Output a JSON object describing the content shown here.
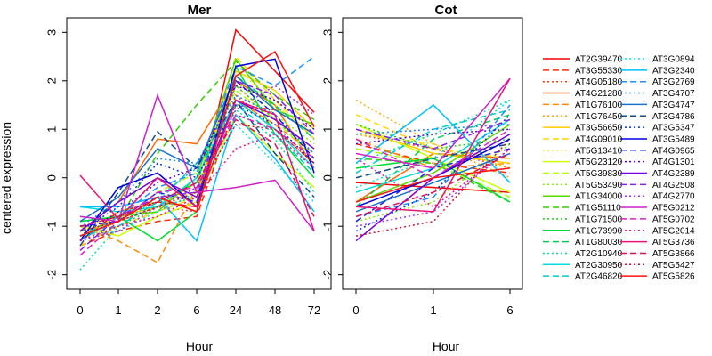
{
  "ylabel": "centered expression",
  "chart_data": [
    {
      "type": "line",
      "title": "Mer",
      "xlabel": "Hour",
      "ylabel": "centered expression",
      "categories": [
        "0",
        "1",
        "2",
        "6",
        "24",
        "48",
        "72"
      ],
      "ylim": [
        -2.3,
        3.3
      ],
      "yticks": [
        -2,
        -1,
        0,
        1,
        2,
        3
      ],
      "grid": false,
      "series": [
        {
          "name": "AT2G39470",
          "color": "#ff0000",
          "dash": "solid",
          "values": [
            -1.3,
            -0.7,
            -0.5,
            -0.6,
            3.05,
            2.2,
            1.35
          ]
        },
        {
          "name": "AT3G55330",
          "color": "#ff2a00",
          "dash": "dashed",
          "values": [
            -1.4,
            -1.1,
            -0.9,
            -0.8,
            1.5,
            1.4,
            0.9
          ]
        },
        {
          "name": "AT4G05180",
          "color": "#ff3f00",
          "dash": "dotted",
          "values": [
            -1.2,
            -0.9,
            -0.6,
            -0.7,
            1.7,
            1.0,
            0.3
          ]
        },
        {
          "name": "AT4G21280",
          "color": "#ff6a00",
          "dash": "solid",
          "values": [
            -1.1,
            -0.5,
            0.8,
            0.7,
            2.0,
            1.5,
            0.2
          ]
        },
        {
          "name": "AT1G76100",
          "color": "#ff8c00",
          "dash": "dashed",
          "values": [
            -1.0,
            -1.3,
            -1.75,
            -0.2,
            1.6,
            1.1,
            0.5
          ]
        },
        {
          "name": "AT1G76450",
          "color": "#ffa500",
          "dash": "dotted",
          "values": [
            -1.3,
            -0.9,
            -0.4,
            -0.3,
            1.9,
            1.2,
            0.6
          ]
        },
        {
          "name": "AT3G56650",
          "color": "#ffcc00",
          "dash": "solid",
          "values": [
            -1.2,
            -0.8,
            -0.6,
            -0.1,
            2.2,
            1.8,
            1.0
          ]
        },
        {
          "name": "AT4G09010",
          "color": "#ffd700",
          "dash": "dashed",
          "values": [
            -1.4,
            -1.0,
            -0.7,
            -0.4,
            2.5,
            1.6,
            0.8
          ]
        },
        {
          "name": "AT5G13410",
          "color": "#e6e600",
          "dash": "dotted",
          "values": [
            -1.1,
            -0.7,
            -0.5,
            -0.3,
            2.3,
            1.5,
            0.9
          ]
        },
        {
          "name": "AT5G23120",
          "color": "#ccff00",
          "dash": "solid",
          "values": [
            -1.0,
            -1.2,
            -0.8,
            -0.5,
            1.3,
            0.5,
            -0.2
          ]
        },
        {
          "name": "AT5G39830",
          "color": "#aaff00",
          "dash": "dashed",
          "values": [
            -1.2,
            -0.9,
            -0.3,
            0.1,
            1.8,
            1.2,
            0.4
          ]
        },
        {
          "name": "AT5G53490",
          "color": "#88ee00",
          "dash": "dotted",
          "values": [
            -1.3,
            -1.1,
            -0.6,
            -0.2,
            2.0,
            1.3,
            0.7
          ]
        },
        {
          "name": "AT1G34000",
          "color": "#55dd00",
          "dash": "solid",
          "values": [
            -0.9,
            -0.8,
            -0.7,
            0.0,
            2.45,
            1.4,
            1.1
          ]
        },
        {
          "name": "AT1G51110",
          "color": "#33cc00",
          "dash": "dashed",
          "values": [
            -1.1,
            -0.9,
            0.5,
            1.5,
            2.4,
            1.7,
            1.2
          ]
        },
        {
          "name": "AT1G71500",
          "color": "#22cc22",
          "dash": "dotted",
          "values": [
            -1.3,
            -1.0,
            -0.6,
            -0.4,
            1.9,
            1.2,
            0.5
          ]
        },
        {
          "name": "AT1G73990",
          "color": "#00dd33",
          "dash": "solid",
          "values": [
            -0.9,
            -0.8,
            -1.3,
            -0.7,
            2.3,
            0.9,
            0.0
          ]
        },
        {
          "name": "AT1G80030",
          "color": "#00cc55",
          "dash": "dashed",
          "values": [
            -1.2,
            -1.0,
            -0.5,
            -0.1,
            2.1,
            1.5,
            0.8
          ]
        },
        {
          "name": "AT2G10940",
          "color": "#00ddaa",
          "dash": "dotted",
          "values": [
            -1.9,
            -1.0,
            -0.4,
            0.2,
            1.4,
            0.8,
            -0.3
          ]
        },
        {
          "name": "AT2G30950",
          "color": "#00dddd",
          "dash": "solid",
          "values": [
            -0.6,
            -0.7,
            -0.6,
            0.0,
            1.6,
            1.0,
            0.2
          ]
        },
        {
          "name": "AT2G46820",
          "color": "#00cccc",
          "dash": "dashed",
          "values": [
            -1.1,
            -1.0,
            -0.5,
            0.3,
            1.5,
            0.9,
            0.1
          ]
        },
        {
          "name": "AT3G0894",
          "color": "#00e5ee",
          "dash": "dotted",
          "values": [
            -1.2,
            -1.1,
            -0.7,
            -0.3,
            1.1,
            0.3,
            -0.5
          ]
        },
        {
          "name": "AT3G2340",
          "color": "#00bfff",
          "dash": "solid",
          "values": [
            -0.6,
            -0.6,
            -0.4,
            -1.3,
            1.3,
            0.4,
            -0.7
          ]
        },
        {
          "name": "AT3G2769",
          "color": "#1e90ff",
          "dash": "dashed",
          "values": [
            -1.3,
            -0.8,
            -0.2,
            0.1,
            2.3,
            1.9,
            2.5
          ]
        },
        {
          "name": "AT3G4707",
          "color": "#1c86ee",
          "dash": "dotted",
          "values": [
            -1.0,
            -0.5,
            0.4,
            0.3,
            1.7,
            1.3,
            0.5
          ]
        },
        {
          "name": "AT3G4747",
          "color": "#1874cd",
          "dash": "solid",
          "values": [
            -0.9,
            -0.4,
            0.6,
            0.2,
            2.1,
            1.4,
            0.9
          ]
        },
        {
          "name": "AT3G4786",
          "color": "#104e8b",
          "dash": "dashed",
          "values": [
            -1.4,
            -0.3,
            0.95,
            0.2,
            1.6,
            0.5,
            -0.4
          ]
        },
        {
          "name": "AT3G5347",
          "color": "#0033cc",
          "dash": "dotted",
          "values": [
            -1.1,
            -0.6,
            0.3,
            0.0,
            1.5,
            1.1,
            0.3
          ]
        },
        {
          "name": "AT3G5489",
          "color": "#0000dd",
          "dash": "solid",
          "values": [
            -1.3,
            -0.2,
            0.1,
            -0.6,
            2.3,
            2.45,
            0.1
          ]
        },
        {
          "name": "AT4G0965",
          "color": "#2222ee",
          "dash": "dashed",
          "values": [
            -1.0,
            -0.9,
            -0.3,
            -0.5,
            2.0,
            1.3,
            0.4
          ]
        },
        {
          "name": "AT4G1301",
          "color": "#5500cc",
          "dash": "dotted",
          "values": [
            -1.2,
            -0.7,
            -0.1,
            0.2,
            1.9,
            1.6,
            1.0
          ]
        },
        {
          "name": "AT4G2389",
          "color": "#7700dd",
          "dash": "solid",
          "values": [
            -1.1,
            -0.5,
            0.0,
            -0.4,
            1.6,
            1.2,
            0.6
          ]
        },
        {
          "name": "AT4G2508",
          "color": "#8822ee",
          "dash": "dashed",
          "values": [
            -1.5,
            -0.8,
            -0.4,
            -0.3,
            2.0,
            1.7,
            0.9
          ]
        },
        {
          "name": "AT4G2770",
          "color": "#9933ff",
          "dash": "dotted",
          "values": [
            -1.3,
            -1.1,
            -0.6,
            -0.2,
            1.4,
            1.9,
            1.3
          ]
        },
        {
          "name": "AT5G0212",
          "color": "#cc22cc",
          "dash": "solid",
          "values": [
            -0.8,
            -0.9,
            1.7,
            -0.3,
            -0.2,
            -0.05,
            -1.1
          ]
        },
        {
          "name": "AT5G0702",
          "color": "#dd22bb",
          "dash": "dashed",
          "values": [
            -1.6,
            -0.9,
            -0.3,
            -0.2,
            1.3,
            1.0,
            0.4
          ]
        },
        {
          "name": "AT5G2014",
          "color": "#ee1199",
          "dash": "dotted",
          "values": [
            -1.3,
            -1.0,
            -0.8,
            -0.4,
            0.6,
            0.9,
            0.2
          ]
        },
        {
          "name": "AT5G3736",
          "color": "#ee1177",
          "dash": "solid",
          "values": [
            0.05,
            -0.85,
            0.0,
            -0.6,
            1.6,
            1.3,
            -1.1
          ]
        },
        {
          "name": "AT5G3866",
          "color": "#dd1155",
          "dash": "dashed",
          "values": [
            -1.0,
            -0.8,
            -0.5,
            -0.1,
            1.2,
            0.7,
            -0.8
          ]
        },
        {
          "name": "AT5G5427",
          "color": "#cc1133",
          "dash": "dotted",
          "values": [
            -1.1,
            -0.9,
            -0.6,
            -0.3,
            1.1,
            1.0,
            0.3
          ]
        },
        {
          "name": "AT5G5826",
          "color": "#ff1111",
          "dash": "solid",
          "values": [
            -1.2,
            -0.9,
            -0.4,
            -0.7,
            2.1,
            2.6,
            1.05
          ]
        }
      ]
    },
    {
      "type": "line",
      "title": "Cot",
      "xlabel": "Hour",
      "ylabel": "",
      "categories": [
        "0",
        "1",
        "6"
      ],
      "ylim": [
        -2.3,
        3.3
      ],
      "yticks": [
        -2,
        -1,
        0,
        1,
        2,
        3
      ],
      "grid": false,
      "series_values": [
        [
          -0.1,
          -0.2,
          -0.3
        ],
        [
          0.7,
          0.3,
          0.1
        ],
        [
          0.9,
          0.6,
          0.2
        ],
        [
          -0.5,
          0.5,
          0.4
        ],
        [
          0.8,
          0.2,
          0.3
        ],
        [
          1.6,
          0.7,
          0.0
        ],
        [
          1.0,
          0.5,
          0.3
        ],
        [
          1.3,
          0.6,
          0.4
        ],
        [
          0.9,
          0.7,
          0.2
        ],
        [
          1.1,
          0.4,
          -0.3
        ],
        [
          0.6,
          0.3,
          -0.4
        ],
        [
          -0.9,
          -0.5,
          0.7
        ],
        [
          -0.5,
          0.1,
          1.1
        ],
        [
          0.4,
          0.3,
          -0.5
        ],
        [
          1.1,
          0.6,
          0.8
        ],
        [
          0.2,
          0.4,
          -0.5
        ],
        [
          -0.6,
          0.8,
          1.3
        ],
        [
          0.3,
          0.9,
          1.6
        ],
        [
          -0.3,
          0.2,
          1.2
        ],
        [
          0.1,
          1.0,
          1.4
        ],
        [
          -0.2,
          0.4,
          1.6
        ],
        [
          0.3,
          1.5,
          -0.1
        ],
        [
          -0.8,
          -0.4,
          1.5
        ],
        [
          0.9,
          1.0,
          1.1
        ],
        [
          -0.7,
          -0.1,
          0.5
        ],
        [
          0.0,
          0.4,
          0.7
        ],
        [
          -1.1,
          -0.3,
          1.3
        ],
        [
          -0.6,
          0.0,
          0.8
        ],
        [
          -0.9,
          0.2,
          0.6
        ],
        [
          0.7,
          0.9,
          1.0
        ],
        [
          -1.3,
          0.0,
          0.9
        ],
        [
          1.0,
          0.6,
          1.2
        ],
        [
          -1.0,
          -0.7,
          0.6
        ],
        [
          0.5,
          0.2,
          2.05
        ],
        [
          0.8,
          0.0,
          1.0
        ],
        [
          0.4,
          -0.6,
          0.6
        ],
        [
          -0.6,
          -0.7,
          2.05
        ],
        [
          -0.8,
          -0.3,
          0.5
        ],
        [
          -1.2,
          -0.9,
          0.8
        ],
        [
          -0.5,
          0.0,
          0.2
        ]
      ]
    }
  ]
}
